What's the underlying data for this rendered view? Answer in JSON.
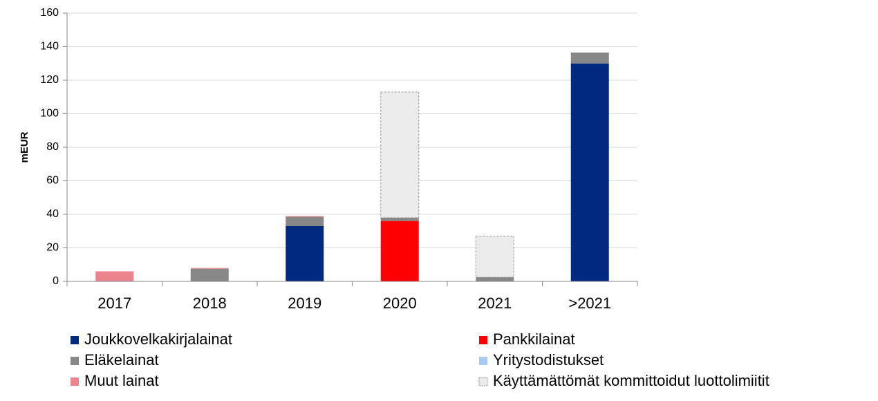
{
  "chart_data": {
    "type": "stacked_bar",
    "ylabel": "mEUR",
    "categories": [
      "2017",
      "2018",
      "2019",
      "2020",
      "2021",
      ">2021"
    ],
    "series": [
      {
        "name": "Joukkovelkakirjalainat",
        "color": "#002a7f",
        "values": [
          0,
          0,
          33,
          0,
          0,
          130
        ]
      },
      {
        "name": "Pankkilainat",
        "color": "#ff0000",
        "values": [
          0,
          0,
          0,
          36,
          0,
          0
        ]
      },
      {
        "name": "Eläkelainat",
        "color": "#878787",
        "values": [
          0,
          7.5,
          5.5,
          2,
          2.5,
          6.5
        ]
      },
      {
        "name": "Yritystodistukset",
        "color": "#a9c9f5",
        "values": [
          0,
          0,
          0,
          0,
          0,
          0
        ]
      },
      {
        "name": "Muut lainat",
        "color": "#e9848c",
        "values": [
          6,
          0.5,
          0.5,
          0,
          0,
          0
        ]
      },
      {
        "name": "Käyttämättömät kommittoidut luottolimiitit",
        "color": "#ebebeb",
        "edgecolor": "#999999",
        "linestyle": "dashed",
        "values": [
          0,
          0,
          0,
          75,
          24.5,
          0
        ]
      }
    ],
    "ylim": [
      0,
      160
    ],
    "yticks": [
      0,
      20,
      40,
      60,
      80,
      100,
      120,
      140,
      160
    ],
    "grid": true
  }
}
